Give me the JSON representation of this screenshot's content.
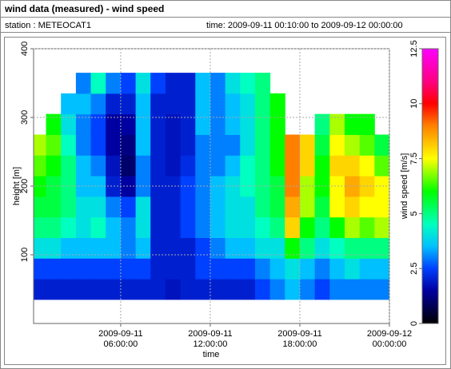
{
  "chart_data": {
    "type": "heatmap",
    "title": "wind data (measured) - wind speed",
    "station": "station : METEOCAT1",
    "time_range": "time: 2009-09-11 00:10:00 to 2009-09-12 00:00:00",
    "x_label": "time",
    "y_label": "height [m]",
    "colorbar_label": "wind speed [m/s]",
    "xlim": [
      0.1667,
      24
    ],
    "ylim": [
      0,
      400
    ],
    "xticks": [
      {
        "value": 6,
        "label": "2009-09-11 06:00:00"
      },
      {
        "value": 12,
        "label": "2009-09-11 12:00:00"
      },
      {
        "value": 18,
        "label": "2009-09-11 18:00:00"
      },
      {
        "value": 24,
        "label": "2009-09-12 00:00:00"
      }
    ],
    "yticks": [
      100,
      200,
      300,
      400
    ],
    "grid": true,
    "clim": [
      0,
      12.5
    ],
    "cticks": [
      0,
      2.5,
      5,
      7.5,
      10,
      12.5
    ],
    "colorscale": [
      [
        0,
        "#000000"
      ],
      [
        1.5,
        "#0000a0"
      ],
      [
        2.5,
        "#0040ff"
      ],
      [
        3.5,
        "#00c0ff"
      ],
      [
        4.5,
        "#00ffc0"
      ],
      [
        6,
        "#00ff00"
      ],
      [
        7.5,
        "#ffff00"
      ],
      [
        9,
        "#ff8000"
      ],
      [
        10,
        "#ff0000"
      ],
      [
        11,
        "#ff0080"
      ],
      [
        12.5,
        "#ff00ff"
      ]
    ],
    "xbins": [
      0,
      1,
      2,
      3,
      4,
      5,
      6,
      7,
      8,
      9,
      10,
      11,
      12,
      13,
      14,
      15,
      16,
      17,
      18,
      19,
      20,
      21,
      22,
      23,
      24
    ],
    "ybins": [
      35,
      65,
      95,
      125,
      155,
      185,
      215,
      245,
      275,
      305,
      335,
      365
    ],
    "z": [
      [
        2,
        2.5,
        4,
        5,
        5.5,
        6,
        6.5,
        7,
        null,
        null,
        null
      ],
      [
        2,
        2.5,
        4,
        5,
        5.5,
        5.5,
        6,
        6.5,
        6,
        null,
        null
      ],
      [
        2,
        2.5,
        3.5,
        4.5,
        5,
        5,
        5,
        4.5,
        4,
        3.5,
        null
      ],
      [
        2,
        2.5,
        3.5,
        4,
        4,
        3.5,
        3.5,
        3,
        3,
        3.5,
        3
      ],
      [
        2,
        2.5,
        3.5,
        4.5,
        4,
        3.5,
        3,
        2.5,
        2.5,
        3,
        4.5
      ],
      [
        2,
        2.5,
        3.5,
        3.5,
        3,
        2,
        1.8,
        1.5,
        1.5,
        2,
        3
      ],
      [
        2,
        2.5,
        3,
        3,
        2.5,
        1.5,
        1,
        1.2,
        1.5,
        2,
        2.5
      ],
      [
        2,
        2.5,
        3.5,
        4,
        4,
        3,
        3,
        3.5,
        3.5,
        3.5,
        4
      ],
      [
        2,
        2,
        2,
        2,
        2,
        2,
        2,
        2,
        2,
        2,
        2.5
      ],
      [
        1.8,
        2,
        2,
        2,
        2,
        2,
        1.8,
        1.8,
        1.8,
        2,
        2
      ],
      [
        2,
        2,
        2,
        2.5,
        2.5,
        2.5,
        2.2,
        2,
        2,
        2,
        2
      ],
      [
        2,
        2.5,
        2.5,
        3,
        3,
        3,
        3,
        3,
        3.5,
        3.5,
        3.5
      ],
      [
        2,
        2.5,
        3,
        3.5,
        3.5,
        3.5,
        3,
        3,
        3,
        3,
        3
      ],
      [
        2,
        2.5,
        3.5,
        4,
        4,
        4,
        3.5,
        3,
        3.5,
        3.5,
        4
      ],
      [
        2,
        2.5,
        3.5,
        4,
        4,
        4.5,
        4.5,
        4,
        4,
        4,
        4.5
      ],
      [
        2.5,
        3,
        4,
        4.5,
        5,
        5,
        5,
        5,
        5,
        5,
        5
      ],
      [
        3,
        3.5,
        4,
        5,
        5.5,
        5.5,
        6,
        6,
        6,
        6,
        null
      ],
      [
        3.5,
        4,
        6,
        8,
        8.5,
        9,
        9,
        9,
        null,
        null,
        null
      ],
      [
        3,
        3.5,
        5,
        6,
        7,
        7,
        8,
        8,
        null,
        null,
        null
      ],
      [
        2.5,
        3,
        4,
        5,
        5.5,
        6,
        6,
        5.5,
        5,
        null,
        null
      ],
      [
        3,
        3.5,
        4.5,
        6,
        7.5,
        7.5,
        8,
        7.5,
        7,
        null,
        null
      ],
      [
        3,
        4,
        5,
        7,
        8,
        8.5,
        8,
        7,
        6,
        null,
        null
      ],
      [
        3,
        3.5,
        5,
        6.5,
        7.5,
        8,
        7.5,
        6.5,
        6,
        null,
        null
      ],
      [
        3,
        3.5,
        5,
        7,
        7.5,
        7.5,
        6.5,
        5.5,
        null,
        null,
        null
      ]
    ]
  }
}
